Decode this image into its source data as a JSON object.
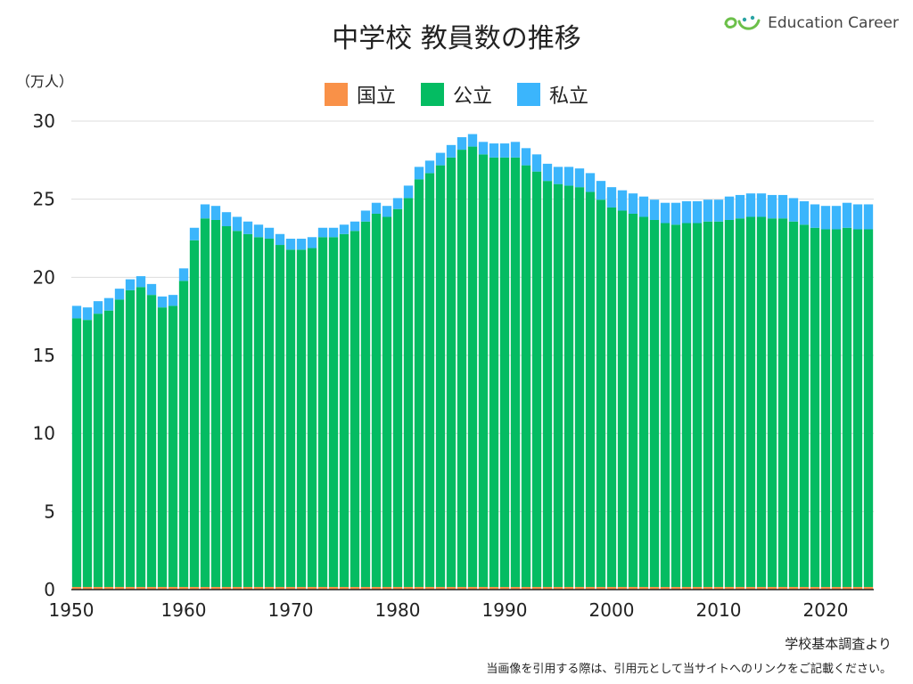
{
  "header": {
    "title": "中学校 教員数の推移",
    "brand_name": "Education Career"
  },
  "footer": {
    "source": "学校基本調査より",
    "note": "当画像を引用する際は、引用元として当サイトへのリンクをご記載ください。"
  },
  "colors": {
    "national": "#f99148",
    "public": "#04bc62",
    "private": "#3bb5fc",
    "grid": "#dddddd",
    "brand_green": "#6cc04a",
    "brand_teal": "#2aa3a3"
  },
  "icons": {
    "brand_logo": "smile-logo-icon"
  },
  "chart_data": {
    "type": "bar",
    "stacked": true,
    "ylabel": "（万人）",
    "ylim": [
      0,
      30
    ],
    "yticks": [
      0,
      5,
      10,
      15,
      20,
      25,
      30
    ],
    "xticks": [
      1950,
      1960,
      1970,
      1980,
      1990,
      2000,
      2010,
      2020
    ],
    "grid": true,
    "legend_position": "top-center",
    "categories": [
      1950,
      1951,
      1952,
      1953,
      1954,
      1955,
      1956,
      1957,
      1958,
      1959,
      1960,
      1961,
      1962,
      1963,
      1964,
      1965,
      1966,
      1967,
      1968,
      1969,
      1970,
      1971,
      1972,
      1973,
      1974,
      1975,
      1976,
      1977,
      1978,
      1979,
      1980,
      1981,
      1982,
      1983,
      1984,
      1985,
      1986,
      1987,
      1988,
      1989,
      1990,
      1991,
      1992,
      1993,
      1994,
      1995,
      1996,
      1997,
      1998,
      1999,
      2000,
      2001,
      2002,
      2003,
      2004,
      2005,
      2006,
      2007,
      2008,
      2009,
      2010,
      2011,
      2012,
      2013,
      2014,
      2015,
      2016,
      2017,
      2018,
      2019,
      2020,
      2021,
      2022,
      2023,
      2024
    ],
    "series": [
      {
        "name": "国立",
        "values": [
          0.17,
          0.17,
          0.17,
          0.17,
          0.17,
          0.17,
          0.17,
          0.17,
          0.17,
          0.17,
          0.17,
          0.17,
          0.17,
          0.17,
          0.17,
          0.17,
          0.17,
          0.17,
          0.17,
          0.17,
          0.17,
          0.17,
          0.17,
          0.17,
          0.17,
          0.17,
          0.17,
          0.17,
          0.17,
          0.17,
          0.17,
          0.17,
          0.17,
          0.17,
          0.17,
          0.17,
          0.17,
          0.17,
          0.17,
          0.17,
          0.17,
          0.17,
          0.17,
          0.17,
          0.17,
          0.17,
          0.17,
          0.17,
          0.17,
          0.17,
          0.17,
          0.17,
          0.17,
          0.17,
          0.17,
          0.17,
          0.17,
          0.17,
          0.17,
          0.17,
          0.17,
          0.17,
          0.17,
          0.17,
          0.17,
          0.17,
          0.17,
          0.17,
          0.17,
          0.17,
          0.17,
          0.17,
          0.17,
          0.17,
          0.17
        ]
      },
      {
        "name": "公立",
        "values": [
          17.2,
          17.1,
          17.5,
          17.7,
          18.4,
          19.0,
          19.2,
          18.7,
          17.9,
          18.0,
          19.6,
          22.2,
          23.6,
          23.5,
          23.1,
          22.8,
          22.6,
          22.4,
          22.3,
          21.9,
          21.6,
          21.6,
          21.7,
          22.4,
          22.4,
          22.6,
          22.8,
          23.4,
          23.9,
          23.7,
          24.2,
          24.9,
          26.1,
          26.5,
          27.0,
          27.5,
          28.0,
          28.2,
          27.7,
          27.5,
          27.5,
          27.5,
          27.0,
          26.6,
          26.0,
          25.8,
          25.7,
          25.6,
          25.3,
          24.8,
          24.3,
          24.1,
          23.9,
          23.7,
          23.5,
          23.3,
          23.2,
          23.3,
          23.3,
          23.4,
          23.4,
          23.5,
          23.6,
          23.7,
          23.7,
          23.6,
          23.6,
          23.4,
          23.2,
          23.0,
          22.9,
          22.9,
          23.0,
          22.9,
          22.9
        ]
      },
      {
        "name": "私立",
        "values": [
          0.8,
          0.8,
          0.8,
          0.8,
          0.7,
          0.7,
          0.7,
          0.7,
          0.7,
          0.7,
          0.8,
          0.8,
          0.9,
          0.9,
          0.9,
          0.9,
          0.8,
          0.8,
          0.7,
          0.7,
          0.7,
          0.7,
          0.7,
          0.6,
          0.6,
          0.6,
          0.6,
          0.7,
          0.7,
          0.7,
          0.7,
          0.8,
          0.8,
          0.8,
          0.8,
          0.8,
          0.8,
          0.8,
          0.8,
          0.9,
          0.9,
          1.0,
          1.1,
          1.1,
          1.1,
          1.1,
          1.2,
          1.2,
          1.2,
          1.2,
          1.3,
          1.3,
          1.3,
          1.3,
          1.3,
          1.3,
          1.4,
          1.4,
          1.4,
          1.4,
          1.4,
          1.5,
          1.5,
          1.5,
          1.5,
          1.5,
          1.5,
          1.5,
          1.5,
          1.5,
          1.5,
          1.5,
          1.6,
          1.6,
          1.6
        ]
      }
    ]
  }
}
